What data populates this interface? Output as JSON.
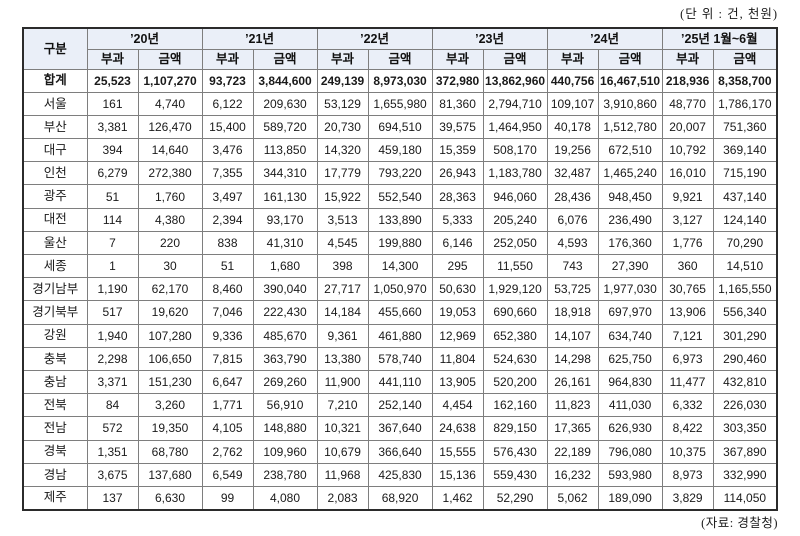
{
  "unit_note": "(단 위 : 건, 천원)",
  "source_note": "(자료: 경찰청)",
  "colors": {
    "header_bg": "#eaeff8",
    "border_outer": "#2b2b2b",
    "border_inner": "#7e7e7e"
  },
  "table": {
    "corner_label": "구분",
    "year_headers": [
      "’20년",
      "’21년",
      "’22년",
      "’23년",
      "’24년",
      "’25년 1월~6월"
    ],
    "sub_headers": [
      "부과",
      "금액"
    ],
    "rows": [
      {
        "label": "합계",
        "bold": true,
        "values": [
          "25,523",
          "1,107,270",
          "93,723",
          "3,844,600",
          "249,139",
          "8,973,030",
          "372,980",
          "13,862,960",
          "440,756",
          "16,467,510",
          "218,936",
          "8,358,700"
        ]
      },
      {
        "label": "서울",
        "bold": false,
        "values": [
          "161",
          "4,740",
          "6,122",
          "209,630",
          "53,129",
          "1,655,980",
          "81,360",
          "2,794,710",
          "109,107",
          "3,910,860",
          "48,770",
          "1,786,170"
        ]
      },
      {
        "label": "부산",
        "bold": false,
        "values": [
          "3,381",
          "126,470",
          "15,400",
          "589,720",
          "20,730",
          "694,510",
          "39,575",
          "1,464,950",
          "40,178",
          "1,512,780",
          "20,007",
          "751,360"
        ]
      },
      {
        "label": "대구",
        "bold": false,
        "values": [
          "394",
          "14,640",
          "3,476",
          "113,850",
          "14,320",
          "459,180",
          "15,359",
          "508,170",
          "19,256",
          "672,510",
          "10,792",
          "369,140"
        ]
      },
      {
        "label": "인천",
        "bold": false,
        "values": [
          "6,279",
          "272,380",
          "7,355",
          "344,310",
          "17,779",
          "793,220",
          "26,943",
          "1,183,780",
          "32,487",
          "1,465,240",
          "16,010",
          "715,190"
        ]
      },
      {
        "label": "광주",
        "bold": false,
        "values": [
          "51",
          "1,760",
          "3,497",
          "161,130",
          "15,922",
          "552,540",
          "28,363",
          "946,060",
          "28,436",
          "948,450",
          "9,921",
          "437,140"
        ]
      },
      {
        "label": "대전",
        "bold": false,
        "values": [
          "114",
          "4,380",
          "2,394",
          "93,170",
          "3,513",
          "133,890",
          "5,333",
          "205,240",
          "6,076",
          "236,490",
          "3,127",
          "124,140"
        ]
      },
      {
        "label": "울산",
        "bold": false,
        "values": [
          "7",
          "220",
          "838",
          "41,310",
          "4,545",
          "199,880",
          "6,146",
          "252,050",
          "4,593",
          "176,360",
          "1,776",
          "70,290"
        ]
      },
      {
        "label": "세종",
        "bold": false,
        "values": [
          "1",
          "30",
          "51",
          "1,680",
          "398",
          "14,300",
          "295",
          "11,550",
          "743",
          "27,390",
          "360",
          "14,510"
        ]
      },
      {
        "label": "경기남부",
        "bold": false,
        "values": [
          "1,190",
          "62,170",
          "8,460",
          "390,040",
          "27,717",
          "1,050,970",
          "50,630",
          "1,929,120",
          "53,725",
          "1,977,030",
          "30,765",
          "1,165,550"
        ]
      },
      {
        "label": "경기북부",
        "bold": false,
        "values": [
          "517",
          "19,620",
          "7,046",
          "222,430",
          "14,184",
          "455,660",
          "19,053",
          "690,660",
          "18,918",
          "697,970",
          "13,906",
          "556,340"
        ]
      },
      {
        "label": "강원",
        "bold": false,
        "values": [
          "1,940",
          "107,280",
          "9,336",
          "485,670",
          "9,361",
          "461,880",
          "12,969",
          "652,380",
          "14,107",
          "634,740",
          "7,121",
          "301,290"
        ]
      },
      {
        "label": "충북",
        "bold": false,
        "values": [
          "2,298",
          "106,650",
          "7,815",
          "363,790",
          "13,380",
          "578,740",
          "11,804",
          "524,630",
          "14,298",
          "625,750",
          "6,973",
          "290,460"
        ]
      },
      {
        "label": "충남",
        "bold": false,
        "values": [
          "3,371",
          "151,230",
          "6,647",
          "269,260",
          "11,900",
          "441,110",
          "13,905",
          "520,200",
          "26,161",
          "964,830",
          "11,477",
          "432,810"
        ]
      },
      {
        "label": "전북",
        "bold": false,
        "values": [
          "84",
          "3,260",
          "1,771",
          "56,910",
          "7,210",
          "252,140",
          "4,454",
          "162,160",
          "11,823",
          "411,030",
          "6,332",
          "226,030"
        ]
      },
      {
        "label": "전남",
        "bold": false,
        "values": [
          "572",
          "19,350",
          "4,105",
          "148,880",
          "10,321",
          "367,640",
          "24,638",
          "829,150",
          "17,365",
          "626,930",
          "8,422",
          "303,350"
        ]
      },
      {
        "label": "경북",
        "bold": false,
        "values": [
          "1,351",
          "68,780",
          "2,762",
          "109,960",
          "10,679",
          "366,640",
          "15,555",
          "576,430",
          "22,189",
          "796,080",
          "10,375",
          "367,890"
        ]
      },
      {
        "label": "경남",
        "bold": false,
        "values": [
          "3,675",
          "137,680",
          "6,549",
          "238,780",
          "11,968",
          "425,830",
          "15,136",
          "559,430",
          "16,232",
          "593,980",
          "8,973",
          "332,990"
        ]
      },
      {
        "label": "제주",
        "bold": false,
        "values": [
          "137",
          "6,630",
          "99",
          "4,080",
          "2,083",
          "68,920",
          "1,462",
          "52,290",
          "5,062",
          "189,090",
          "3,829",
          "114,050"
        ]
      }
    ]
  }
}
